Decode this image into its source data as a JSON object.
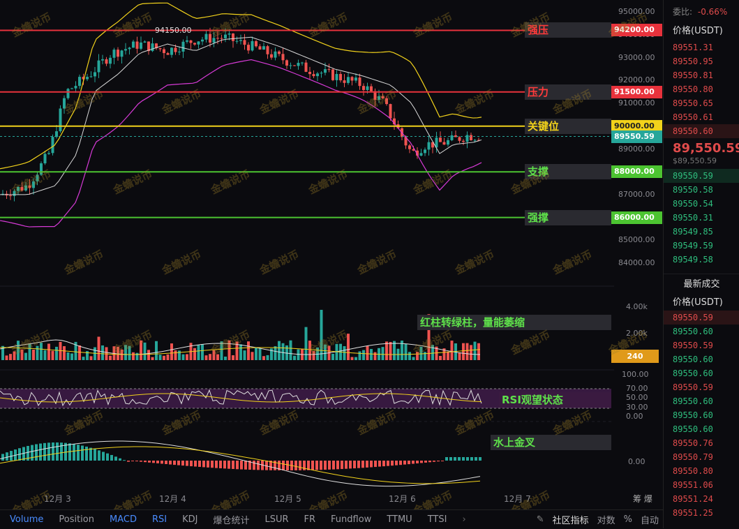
{
  "chart_data": {
    "type": "candlestick",
    "x_labels": [
      "12月 3",
      "12月 4",
      "12月 5",
      "12月 6",
      "12月 7"
    ],
    "y_ticks": [
      "95000.00",
      "94000.00",
      "93000.00",
      "92000.00",
      "91000.00",
      "90000.00",
      "89000.00",
      "88000.00",
      "87000.00",
      "86000.00",
      "85000.00",
      "84000.00"
    ],
    "volume_ticks": [
      "4.00k",
      "2.00k"
    ],
    "rsi_ticks": [
      "100.00",
      "70.00",
      "50.00",
      "30.00",
      "0.00"
    ],
    "macd_ticks": [
      "0.00"
    ],
    "high_marker": "94150.00",
    "current_price": "89550.59",
    "volume_value": "240",
    "levels": [
      {
        "label": "强压",
        "price": "94200.00",
        "value": 94200,
        "color": "#e8323c"
      },
      {
        "label": "压力",
        "price": "91500.00",
        "value": 91500,
        "color": "#e8323c"
      },
      {
        "label": "关键位",
        "price": "90000.00",
        "value": 90000,
        "color": "#f2d21b"
      },
      {
        "label": "支撑",
        "price": "88000.00",
        "value": 88000,
        "color": "#4cc431"
      },
      {
        "label": "强撑",
        "price": "86000.00",
        "value": 86000,
        "color": "#4cc431"
      }
    ],
    "annotations": {
      "volume": "红柱转绿柱，量能萎缩",
      "rsi": "RSI观望状态",
      "macd": "水上金叉"
    },
    "right_edge_label": "筹 爆"
  },
  "toolbar": {
    "tabs": [
      "Volume",
      "Position",
      "MACD",
      "RSI",
      "KDJ",
      "爆仓统计",
      "LSUR",
      "FR",
      "Fundflow",
      "TTMU",
      "TTSI"
    ],
    "community": "社区指标",
    "log": "对数",
    "percent": "%",
    "auto": "自动"
  },
  "sidebar": {
    "ratio_label": "委比:",
    "ratio_value": "-0.66%",
    "price_header": "价格(USDT)",
    "asks": [
      "89551.31",
      "89550.95",
      "89550.81",
      "89550.80",
      "89550.65",
      "89550.61",
      "89550.60"
    ],
    "last_price": "89,550.59",
    "last_price_sub": "$89,550.59",
    "bids": [
      "89550.59",
      "89550.58",
      "89550.54",
      "89550.31",
      "89549.85",
      "89549.59",
      "89549.58"
    ],
    "trades_title": "最新成交",
    "trades_header": "价格(USDT)",
    "trades": [
      {
        "p": "89550.59",
        "side": "sell"
      },
      {
        "p": "89550.60",
        "side": "buy"
      },
      {
        "p": "89550.59",
        "side": "sell"
      },
      {
        "p": "89550.60",
        "side": "buy"
      },
      {
        "p": "89550.60",
        "side": "buy"
      },
      {
        "p": "89550.59",
        "side": "sell"
      },
      {
        "p": "89550.60",
        "side": "buy"
      },
      {
        "p": "89550.60",
        "side": "buy"
      },
      {
        "p": "89550.60",
        "side": "buy"
      },
      {
        "p": "89550.76",
        "side": "sell"
      },
      {
        "p": "89550.79",
        "side": "sell"
      },
      {
        "p": "89550.80",
        "side": "sell"
      },
      {
        "p": "89551.06",
        "side": "sell"
      },
      {
        "p": "89551.24",
        "side": "sell"
      },
      {
        "p": "89551.25",
        "side": "sell"
      }
    ]
  },
  "watermark_text": "金蟾说币",
  "colors": {
    "up": "#26a69a",
    "down": "#ef5350",
    "red_line": "#e8323c",
    "yellow_line": "#f2d21b",
    "green_line": "#4cc431",
    "accent": "#4a8cff"
  }
}
